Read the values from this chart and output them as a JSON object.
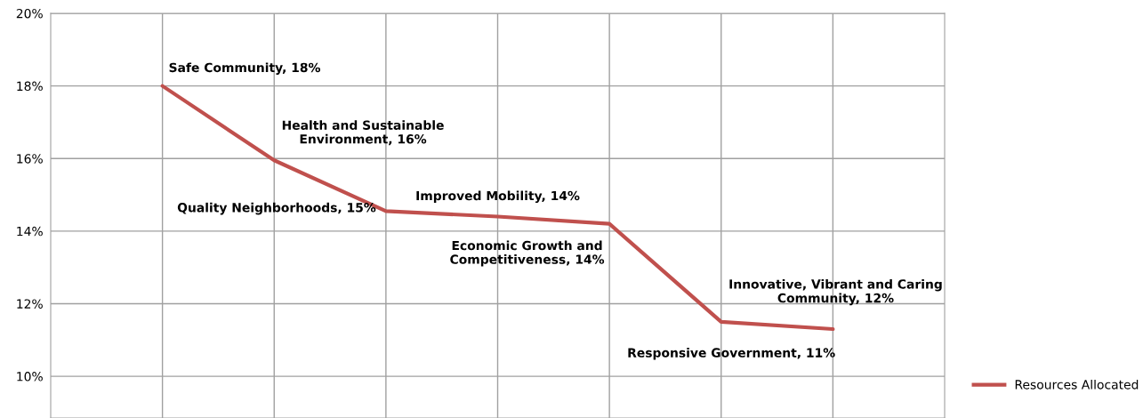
{
  "chart_data": {
    "type": "line",
    "categories": [
      null,
      null,
      null,
      null,
      null,
      null,
      null
    ],
    "series": [
      {
        "name": "Resources Allocated",
        "color": "#c0504d",
        "values": [
          18.0,
          15.95,
          14.55,
          14.4,
          14.2,
          11.5,
          11.3
        ],
        "value_labels": [
          "Safe Community, 18%",
          "Health and Sustainable\nEnvironment, 16%",
          "Quality Neighborhoods, 15%",
          "Improved Mobility, 14%",
          "Economic Growth and\nCompetitiveness, 14%",
          "Innovative, Vibrant and Caring\nCommunity, 12%",
          "Responsive Government, 11%"
        ]
      }
    ],
    "ylim": [
      8.85,
      20
    ],
    "yticks": [
      {
        "value": 10,
        "label": "10%"
      },
      {
        "value": 12,
        "label": "12%"
      },
      {
        "value": 14,
        "label": "14%"
      },
      {
        "value": 16,
        "label": "16%"
      },
      {
        "value": 18,
        "label": "18%"
      },
      {
        "value": 20,
        "label": "20%"
      }
    ],
    "grid": true,
    "legend": "right",
    "marker": "none",
    "line_style": "solid"
  }
}
